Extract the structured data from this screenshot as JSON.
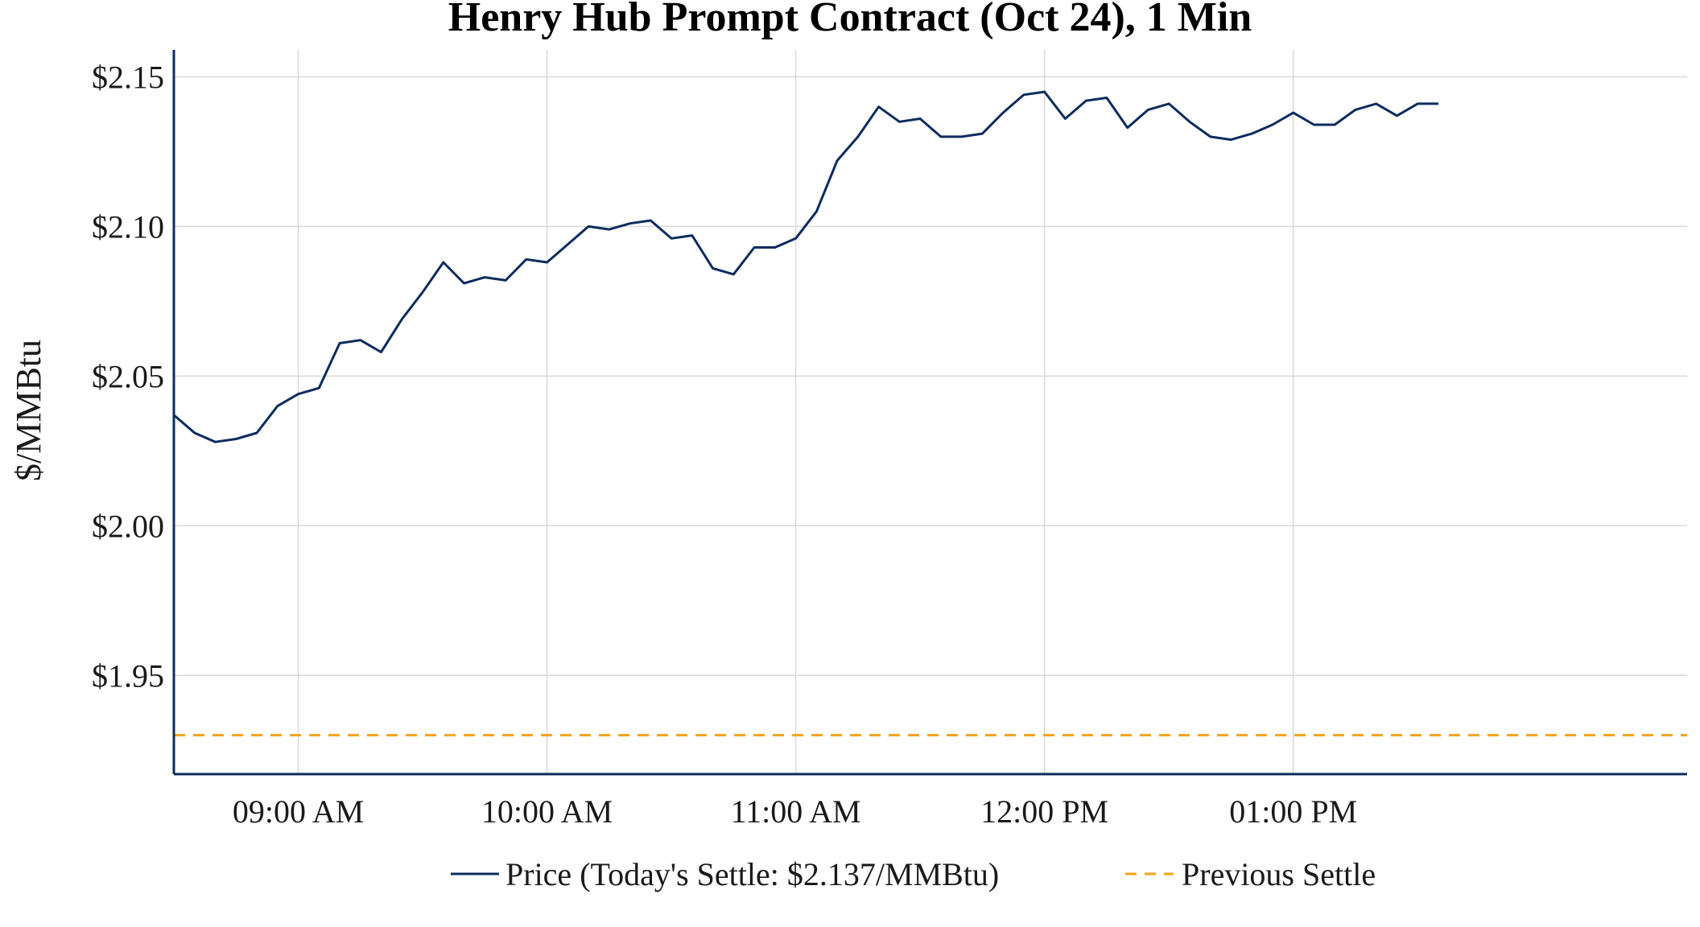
{
  "chart_data": {
    "type": "line",
    "title": "Henry Hub Prompt Contract (Oct 24), 1 Min",
    "xlabel": "",
    "ylabel": "$/MMBtu",
    "x_start": "08:30",
    "x_end": "14:35",
    "x_ticks": [
      {
        "time": "09:00",
        "label": "09:00 AM"
      },
      {
        "time": "10:00",
        "label": "10:00 AM"
      },
      {
        "time": "11:00",
        "label": "11:00 AM"
      },
      {
        "time": "12:00",
        "label": "12:00 PM"
      },
      {
        "time": "13:00",
        "label": "01:00 PM"
      }
    ],
    "ylim": [
      1.917,
      2.159
    ],
    "y_ticks": [
      {
        "value": 1.95,
        "label": "$1.95"
      },
      {
        "value": 2.0,
        "label": "$2.00"
      },
      {
        "value": 2.05,
        "label": "$2.05"
      },
      {
        "value": 2.1,
        "label": "$2.10"
      },
      {
        "value": 2.15,
        "label": "$2.15"
      }
    ],
    "grid": true,
    "legend_position": "bottom-center",
    "series": [
      {
        "name": "Price (Today's Settle: $2.137/MMBtu)",
        "style": "solid",
        "color": "#0d2c5e",
        "x": [
          "08:30",
          "08:35",
          "08:40",
          "08:45",
          "08:50",
          "08:55",
          "09:00",
          "09:05",
          "09:10",
          "09:15",
          "09:20",
          "09:25",
          "09:30",
          "09:35",
          "09:40",
          "09:45",
          "09:50",
          "09:55",
          "10:00",
          "10:05",
          "10:10",
          "10:15",
          "10:20",
          "10:25",
          "10:30",
          "10:35",
          "10:40",
          "10:45",
          "10:50",
          "10:55",
          "11:00",
          "11:05",
          "11:10",
          "11:15",
          "11:20",
          "11:25",
          "11:30",
          "11:35",
          "11:40",
          "11:45",
          "11:50",
          "11:55",
          "12:00",
          "12:05",
          "12:10",
          "12:15",
          "12:20",
          "12:25",
          "12:30",
          "12:35",
          "12:40",
          "12:45",
          "12:50",
          "12:55",
          "13:00",
          "13:05",
          "13:10",
          "13:15",
          "13:20",
          "13:25",
          "13:30",
          "13:35"
        ],
        "values": [
          2.037,
          2.031,
          2.028,
          2.029,
          2.031,
          2.04,
          2.044,
          2.046,
          2.061,
          2.062,
          2.058,
          2.069,
          2.078,
          2.088,
          2.081,
          2.083,
          2.082,
          2.089,
          2.088,
          2.094,
          2.1,
          2.099,
          2.101,
          2.102,
          2.096,
          2.097,
          2.086,
          2.084,
          2.093,
          2.093,
          2.096,
          2.105,
          2.122,
          2.13,
          2.14,
          2.135,
          2.136,
          2.13,
          2.13,
          2.131,
          2.138,
          2.144,
          2.145,
          2.136,
          2.142,
          2.143,
          2.133,
          2.139,
          2.141,
          2.135,
          2.13,
          2.129,
          2.131,
          2.134,
          2.138,
          2.134,
          2.134,
          2.139,
          2.141,
          2.137,
          2.141,
          2.141
        ]
      },
      {
        "name": "Previous Settle",
        "style": "dashed",
        "color": "#f5a31a",
        "values": [
          1.93
        ]
      }
    ]
  }
}
